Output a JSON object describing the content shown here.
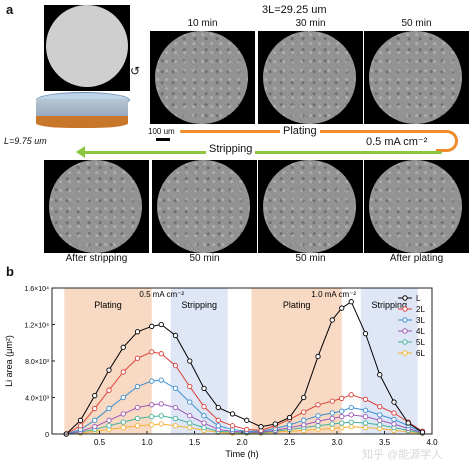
{
  "panel_a": {
    "letter": "a",
    "thickness_label": "3L=29.25 um",
    "L_label": "L=9.75 um",
    "scale_bar_label": "100 um",
    "top_times": [
      "10 min",
      "30 min",
      "50 min"
    ],
    "plating_label": "Plating",
    "stripping_label": "Stripping",
    "current_label": "0.5 mA cm⁻²",
    "bottom_labels": [
      "After stripping",
      "50 min",
      "50 min",
      "After plating"
    ],
    "colors": {
      "plating_arrow": "#f08a2a",
      "stripping_arrow": "#8cc63f"
    }
  },
  "panel_b": {
    "letter": "b"
  },
  "watermark": "知乎 @能源学人",
  "chart_data": {
    "type": "line",
    "xlabel": "Time (h)",
    "ylabel": "Li area (μm²)",
    "xlim": [
      0,
      4.0
    ],
    "ylim": [
      0,
      16000
    ],
    "x_ticks": [
      "0.5",
      "1.0",
      "1.5",
      "2.0",
      "2.5",
      "3.0",
      "3.5",
      "4.0"
    ],
    "y_ticks": [
      "0",
      "4.0×10³",
      "8.0×10³",
      "1.2×10⁴",
      "1.6×10⁴"
    ],
    "regions": [
      {
        "label": "Plating",
        "x": [
          0.13,
          1.05
        ],
        "color": "#f7d9c4"
      },
      {
        "label": "Stripping",
        "x": [
          1.25,
          1.85
        ],
        "color": "#dfe6f5"
      },
      {
        "label": "Plating",
        "x": [
          2.1,
          3.05
        ],
        "color": "#f7d9c4"
      },
      {
        "label": "Stripping",
        "x": [
          3.25,
          3.85
        ],
        "color": "#dfe6f5"
      }
    ],
    "annotations": [
      "0.5 mA cm⁻²",
      "1.0 mA cm⁻²"
    ],
    "legend_position": "top-right",
    "x": [
      0.15,
      0.3,
      0.45,
      0.6,
      0.75,
      0.9,
      1.05,
      1.15,
      1.3,
      1.45,
      1.6,
      1.75,
      1.9,
      2.05,
      2.2,
      2.35,
      2.5,
      2.65,
      2.8,
      2.95,
      3.05,
      3.15,
      3.3,
      3.45,
      3.6,
      3.75,
      3.9
    ],
    "series": [
      {
        "name": "L",
        "color": "#000000",
        "values": [
          0,
          1500,
          4200,
          7000,
          9500,
          11200,
          11800,
          12000,
          10800,
          8000,
          5000,
          2900,
          2200,
          1500,
          800,
          1100,
          1800,
          4000,
          8500,
          12500,
          13800,
          14500,
          11000,
          6500,
          3500,
          1200,
          200
        ]
      },
      {
        "name": "2L",
        "color": "#d9423a",
        "values": [
          0,
          900,
          2800,
          4800,
          6800,
          8300,
          9000,
          8800,
          7500,
          5200,
          3000,
          1500,
          900,
          500,
          400,
          900,
          1600,
          2400,
          3200,
          3600,
          3900,
          4300,
          3800,
          3000,
          2300,
          1300,
          300
        ]
      },
      {
        "name": "3L",
        "color": "#3a8fd1",
        "values": [
          0,
          500,
          1500,
          2800,
          4000,
          5200,
          5800,
          5900,
          5000,
          3500,
          2000,
          900,
          500,
          300,
          300,
          600,
          1000,
          1500,
          2000,
          2300,
          2500,
          2900,
          2600,
          2100,
          1600,
          900,
          200
        ]
      },
      {
        "name": "4L",
        "color": "#9b59b6",
        "values": [
          0,
          300,
          800,
          1500,
          2200,
          2900,
          3200,
          3300,
          2900,
          2000,
          1200,
          500,
          300,
          200,
          200,
          400,
          700,
          1000,
          1400,
          1700,
          1900,
          2100,
          1900,
          1500,
          1100,
          600,
          150
        ]
      },
      {
        "name": "5L",
        "color": "#44b39a",
        "values": [
          0,
          200,
          500,
          900,
          1300,
          1700,
          1900,
          2000,
          1700,
          1200,
          700,
          300,
          200,
          150,
          150,
          300,
          500,
          700,
          900,
          1100,
          1200,
          1300,
          1200,
          1000,
          700,
          400,
          100
        ]
      },
      {
        "name": "6L",
        "color": "#f2b233",
        "values": [
          0,
          100,
          300,
          500,
          700,
          900,
          1000,
          1100,
          900,
          700,
          400,
          200,
          100,
          100,
          100,
          200,
          300,
          400,
          500,
          600,
          700,
          800,
          700,
          600,
          400,
          250,
          60
        ]
      }
    ]
  }
}
